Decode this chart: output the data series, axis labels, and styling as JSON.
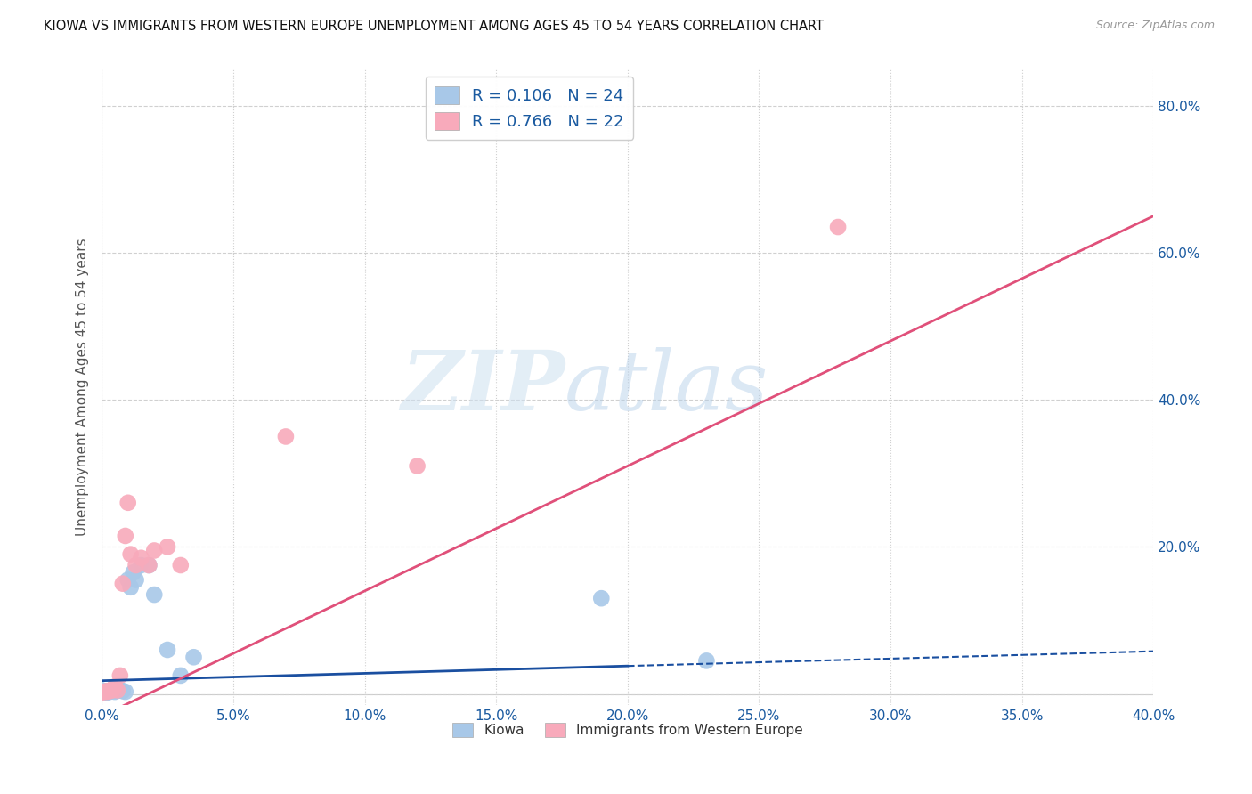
{
  "title": "KIOWA VS IMMIGRANTS FROM WESTERN EUROPE UNEMPLOYMENT AMONG AGES 45 TO 54 YEARS CORRELATION CHART",
  "source": "Source: ZipAtlas.com",
  "ylabel": "Unemployment Among Ages 45 to 54 years",
  "xlim": [
    0.0,
    0.4
  ],
  "ylim": [
    -0.015,
    0.85
  ],
  "xticks": [
    0.0,
    0.05,
    0.1,
    0.15,
    0.2,
    0.25,
    0.3,
    0.35,
    0.4
  ],
  "yticks": [
    0.0,
    0.2,
    0.4,
    0.6,
    0.8
  ],
  "xtick_labels": [
    "0.0%",
    "5.0%",
    "10.0%",
    "15.0%",
    "20.0%",
    "25.0%",
    "30.0%",
    "35.0%",
    "40.0%"
  ],
  "ytick_labels": [
    "",
    "20.0%",
    "40.0%",
    "60.0%",
    "80.0%"
  ],
  "kiowa_R": 0.106,
  "kiowa_N": 24,
  "immigrants_R": 0.766,
  "immigrants_N": 22,
  "kiowa_color": "#a8c8e8",
  "immigrants_color": "#f8aabb",
  "kiowa_line_color": "#1a4fa0",
  "immigrants_line_color": "#e0507a",
  "background_color": "#ffffff",
  "grid_color": "#d0d0d0",
  "kiowa_label": "Kiowa",
  "immigrants_label": "Immigrants from Western Europe",
  "kiowa_x": [
    0.0,
    0.001,
    0.002,
    0.002,
    0.003,
    0.004,
    0.005,
    0.005,
    0.006,
    0.007,
    0.008,
    0.009,
    0.01,
    0.011,
    0.012,
    0.013,
    0.015,
    0.018,
    0.02,
    0.025,
    0.03,
    0.035,
    0.19,
    0.23
  ],
  "kiowa_y": [
    0.005,
    0.003,
    0.002,
    0.004,
    0.003,
    0.005,
    0.003,
    0.005,
    0.005,
    0.005,
    0.004,
    0.003,
    0.155,
    0.145,
    0.165,
    0.155,
    0.175,
    0.175,
    0.135,
    0.06,
    0.025,
    0.05,
    0.13,
    0.045
  ],
  "immigrants_x": [
    0.0,
    0.001,
    0.002,
    0.002,
    0.003,
    0.004,
    0.005,
    0.006,
    0.007,
    0.008,
    0.009,
    0.01,
    0.011,
    0.013,
    0.015,
    0.018,
    0.02,
    0.025,
    0.03,
    0.07,
    0.12,
    0.28
  ],
  "immigrants_y": [
    0.002,
    0.003,
    0.003,
    0.004,
    0.004,
    0.005,
    0.01,
    0.005,
    0.025,
    0.15,
    0.215,
    0.26,
    0.19,
    0.175,
    0.185,
    0.175,
    0.195,
    0.2,
    0.175,
    0.35,
    0.31,
    0.635
  ],
  "kiowa_line_solid_end": 0.2,
  "immigrants_line_start": 0.0,
  "immigrants_line_end": 0.4
}
